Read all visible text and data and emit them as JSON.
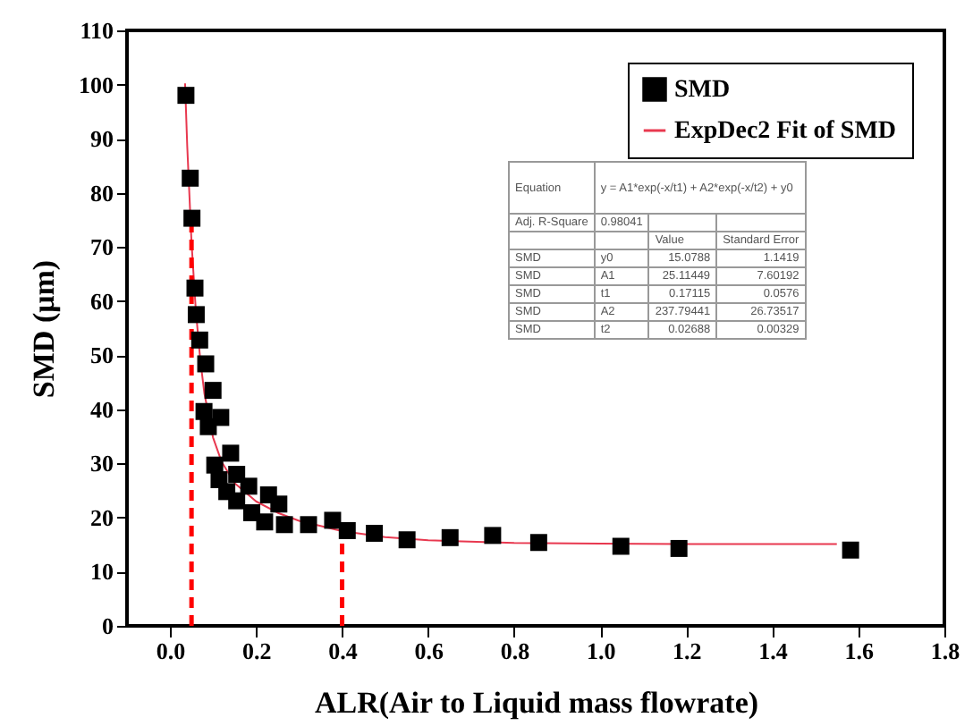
{
  "chart_data": {
    "type": "scatter",
    "xlabel": "ALR(Air to Liquid mass flowrate)",
    "ylabel": "SMD (μm)",
    "xlim": [
      -0.1,
      1.8
    ],
    "xticks": [
      {
        "value": 0,
        "label": "0.0"
      },
      0.2,
      0.4,
      0.6,
      0.8,
      {
        "value": 1,
        "label": "1.0"
      },
      1.2,
      1.4,
      1.6,
      1.8
    ],
    "ylim": [
      0,
      110
    ],
    "yticks": [
      0,
      10,
      20,
      30,
      40,
      50,
      60,
      70,
      80,
      90,
      100,
      110
    ],
    "grid": false,
    "legend": "top right",
    "series": [
      {
        "name": "SMD",
        "marker": "square",
        "color": "#000000",
        "x": [
          0.037,
          0.047,
          0.051,
          0.058,
          0.061,
          0.069,
          0.083,
          0.1,
          0.079,
          0.089,
          0.118,
          0.104,
          0.114,
          0.141,
          0.132,
          0.155,
          0.183,
          0.155,
          0.19,
          0.22,
          0.229,
          0.253,
          0.266,
          0.322,
          0.378,
          0.412,
          0.475,
          0.551,
          0.651,
          0.75,
          0.857,
          1.048,
          1.183,
          1.582
        ],
        "values": [
          98,
          82.7,
          75.3,
          62.4,
          57.5,
          52.8,
          48.4,
          43.5,
          39.6,
          36.8,
          38.5,
          29.7,
          27,
          31.9,
          24.8,
          28,
          25.8,
          23.1,
          20.9,
          19.2,
          24.2,
          22.5,
          18.7,
          18.7,
          19.5,
          17.6,
          17.1,
          15.9,
          16.3,
          16.7,
          15.4,
          14.7,
          14.3,
          14
        ]
      },
      {
        "name": "ExpDec2 Fit of SMD",
        "type": "line",
        "marker": "none",
        "color": "#e8384f",
        "line_style": "solid",
        "x": [
          0.035,
          0.04,
          0.05,
          0.06,
          0.07,
          0.08,
          0.1,
          0.12,
          0.15,
          0.2,
          0.25,
          0.3,
          0.4,
          0.5,
          0.6,
          0.8,
          1.0,
          1.2,
          1.4,
          1.55
        ],
        "values": [
          100.2,
          88.7,
          70.8,
          58.3,
          49.4,
          42.9,
          34.8,
          30.3,
          26.4,
          23,
          20.9,
          19.4,
          17.5,
          16.4,
          15.8,
          15.3,
          15.2,
          15.1,
          15.1,
          15.1
        ]
      },
      {
        "type": "line",
        "marker": "none",
        "color": "#ff0000",
        "line_style": "dashed",
        "x": [
          0.05,
          0.05
        ],
        "values": [
          0,
          75
        ]
      },
      {
        "type": "line",
        "marker": "none",
        "color": "#ff0000",
        "line_style": "dashed",
        "x": [
          0.4,
          0.4
        ],
        "values": [
          0,
          17.5
        ]
      }
    ],
    "annotations": [
      "Equation",
      "y = A1*exp(-x/t1) + A2*exp(-x/t2) + y0",
      "Adj. R-Square",
      "0.98041",
      "Value",
      "Standard Error",
      "SMD",
      "y0",
      "15.0788",
      "1.1419",
      "SMD",
      "A1",
      "25.11449",
      "7.60192",
      "SMD",
      "t1",
      "0.17115",
      "0.0576",
      "SMD",
      "A2",
      "237.79441",
      "26.73517",
      "SMD",
      "t2",
      "0.02688",
      "0.00329"
    ]
  }
}
